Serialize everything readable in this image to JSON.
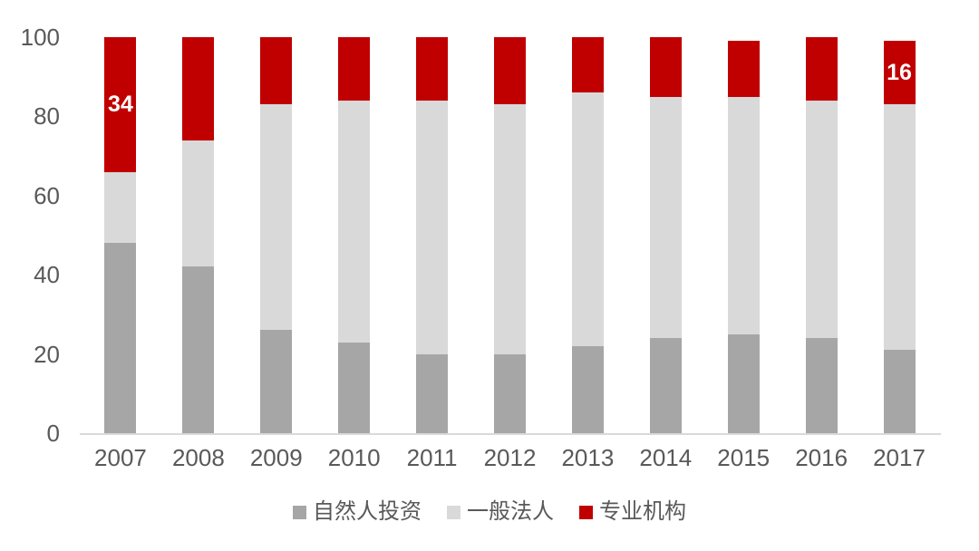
{
  "chart_data": {
    "type": "bar",
    "stacked": true,
    "title": "",
    "xlabel": "",
    "ylabel": "",
    "categories": [
      "2007",
      "2008",
      "2009",
      "2010",
      "2011",
      "2012",
      "2013",
      "2014",
      "2015",
      "2016",
      "2017"
    ],
    "series": [
      {
        "name": "自然人投资",
        "key": "natural-person",
        "color": "#a6a6a6",
        "values": [
          48,
          42,
          26,
          23,
          20,
          20,
          22,
          24,
          25,
          24,
          21
        ]
      },
      {
        "name": "一般法人",
        "key": "general-legal-person",
        "color": "#d9d9d9",
        "values": [
          18,
          32,
          57,
          61,
          64,
          63,
          64,
          61,
          60,
          60,
          62
        ]
      },
      {
        "name": "专业机构",
        "key": "professional-institution",
        "color": "#c00000",
        "values": [
          34,
          26,
          17,
          16,
          16,
          17,
          14,
          15,
          14,
          16,
          16
        ],
        "data_labels": [
          "34",
          null,
          null,
          null,
          null,
          null,
          null,
          null,
          null,
          null,
          "16"
        ]
      }
    ],
    "ylim": [
      0,
      100
    ],
    "yticks": [
      0,
      20,
      40,
      60,
      80,
      100
    ],
    "grid": false,
    "legend_position": "bottom"
  },
  "colors": {
    "background": "#ffffff",
    "axis_text": "#595959",
    "baseline": "#d9d9d9",
    "data_label_text": "#ffffff"
  }
}
